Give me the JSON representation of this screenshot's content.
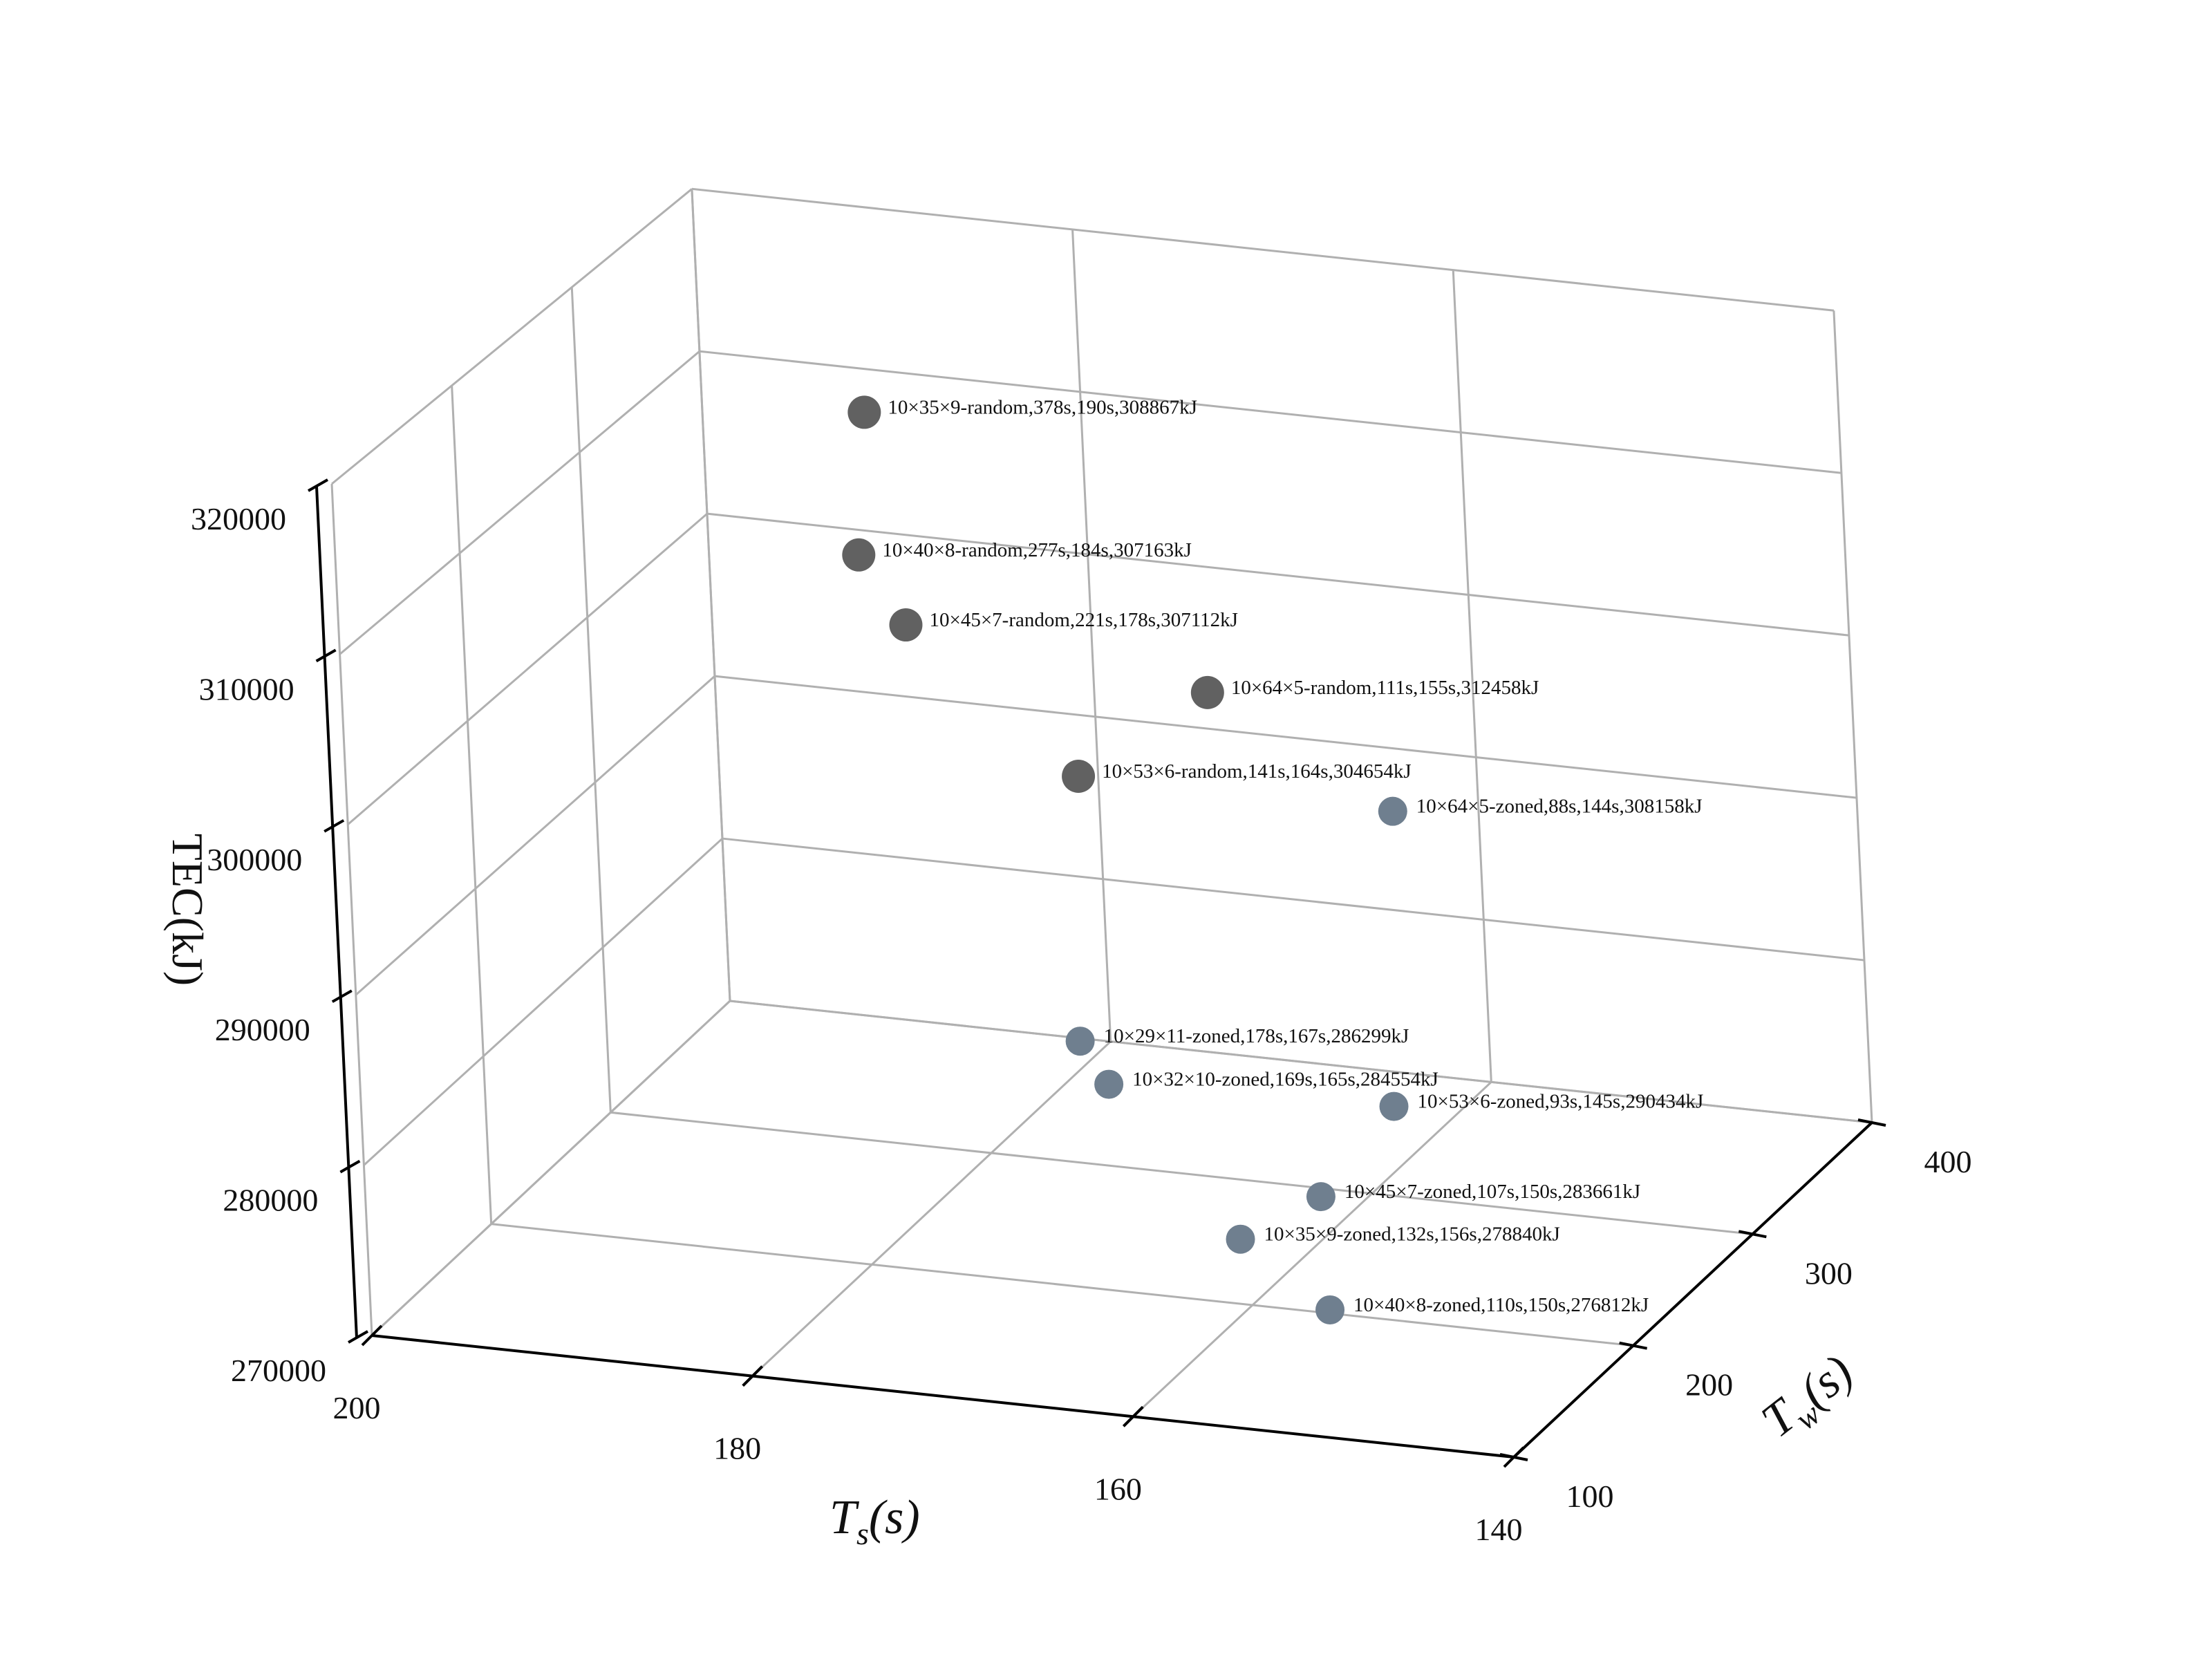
{
  "chart_data": {
    "type": "scatter",
    "projection": "3d",
    "title": "",
    "xlabel": "T_s(s)",
    "ylabel": "T_w(s)",
    "zlabel": "TEC(kJ)",
    "xlim": [
      140,
      200
    ],
    "ylim": [
      100,
      400
    ],
    "zlim": [
      270000,
      320000
    ],
    "x_ticks": [
      "200",
      "180",
      "160",
      "140"
    ],
    "y_ticks": [
      "100",
      "200",
      "300",
      "400"
    ],
    "z_ticks": [
      "270000",
      "280000",
      "290000",
      "300000",
      "310000",
      "320000"
    ],
    "grid": true,
    "colors": {
      "random": "#616161",
      "zoned": "#6f7f8f",
      "grid": "#b0b0b0",
      "axis": "#000000"
    },
    "series": [
      {
        "group": "random",
        "points": [
          {
            "label": "10×35×9-random,378s,190s,308867kJ",
            "tw": 378,
            "ts": 190,
            "tec": 308867
          },
          {
            "label": "10×40×8-random,277s,184s,307163kJ",
            "tw": 277,
            "ts": 184,
            "tec": 307163
          },
          {
            "label": "10×45×7-random,221s,178s,307112kJ",
            "tw": 221,
            "ts": 178,
            "tec": 307112
          },
          {
            "label": "10×64×5-random,111s,155s,312458kJ",
            "tw": 111,
            "ts": 155,
            "tec": 312458
          },
          {
            "label": "10×53×6-random,141s,164s,304654kJ",
            "tw": 141,
            "ts": 164,
            "tec": 304654
          }
        ]
      },
      {
        "group": "zoned",
        "points": [
          {
            "label": "10×64×5-zoned,88s,144s,308158kJ",
            "tw": 88,
            "ts": 144,
            "tec": 308158
          },
          {
            "label": "10×29×11-zoned,178s,167s,286299kJ",
            "tw": 178,
            "ts": 167,
            "tec": 286299
          },
          {
            "label": "10×32×10-zoned,169s,165s,284554kJ",
            "tw": 169,
            "ts": 165,
            "tec": 284554
          },
          {
            "label": "10×53×6-zoned,93s,145s,290434kJ",
            "tw": 93,
            "ts": 145,
            "tec": 290434
          },
          {
            "label": "10×45×7-zoned,107s,150s,283661kJ",
            "tw": 107,
            "ts": 150,
            "tec": 283661
          },
          {
            "label": "10×35×9-zoned,132s,156s,278840kJ",
            "tw": 132,
            "ts": 156,
            "tec": 278840
          },
          {
            "label": "10×40×8-zoned,110s,150s,276812kJ",
            "tw": 110,
            "ts": 150,
            "tec": 276812
          }
        ]
      }
    ]
  }
}
